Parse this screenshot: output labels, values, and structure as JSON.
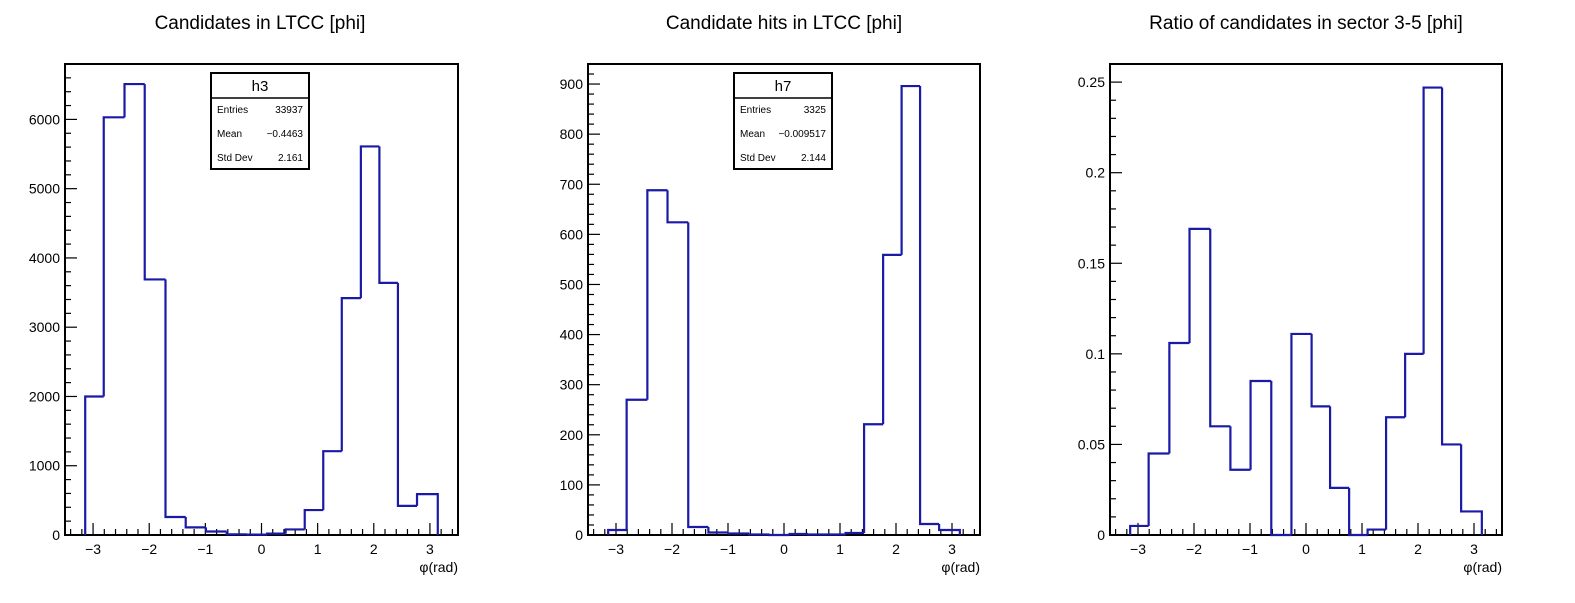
{
  "chart_data": [
    {
      "type": "bar",
      "title": "Candidates in LTCC [phi]",
      "xlabel": "φ(rad)",
      "ylabel": "",
      "xlim": [
        -3.5,
        3.5
      ],
      "ylim": [
        0,
        6800
      ],
      "xticks": [
        "−3",
        "−2",
        "−1",
        "0",
        "1",
        "2",
        "3"
      ],
      "xtick_values": [
        -3,
        -2,
        -1,
        0,
        1,
        2,
        3
      ],
      "yticks": [
        "0",
        "1000",
        "2000",
        "3000",
        "4000",
        "5000",
        "6000"
      ],
      "ytick_values": [
        0,
        1000,
        2000,
        3000,
        4000,
        5000,
        6000
      ],
      "bin_edges": [
        -3.14,
        -2.81,
        -2.44,
        -2.08,
        -1.71,
        -1.35,
        -0.99,
        -0.62,
        -0.26,
        0.1,
        0.43,
        0.77,
        1.1,
        1.43,
        1.77,
        2.1,
        2.43,
        2.77,
        3.14
      ],
      "values": [
        2000,
        6030,
        6510,
        3690,
        260,
        110,
        50,
        10,
        5,
        20,
        80,
        360,
        1210,
        3420,
        5610,
        3640,
        420,
        590
      ],
      "stats": {
        "name": "h3",
        "rows": [
          [
            "Entries",
            "33937"
          ],
          [
            "Mean",
            "−0.4463"
          ],
          [
            "Std Dev",
            "2.161"
          ]
        ]
      },
      "color": "#1a1aa6"
    },
    {
      "type": "bar",
      "title": "Candidate hits in LTCC [phi]",
      "xlabel": "φ(rad)",
      "ylabel": "",
      "xlim": [
        -3.5,
        3.5
      ],
      "ylim": [
        0,
        940
      ],
      "xticks": [
        "−3",
        "−2",
        "−1",
        "0",
        "1",
        "2",
        "3"
      ],
      "xtick_values": [
        -3,
        -2,
        -1,
        0,
        1,
        2,
        3
      ],
      "yticks": [
        "0",
        "100",
        "200",
        "300",
        "400",
        "500",
        "600",
        "700",
        "800",
        "900"
      ],
      "ytick_values": [
        0,
        100,
        200,
        300,
        400,
        500,
        600,
        700,
        800,
        900
      ],
      "bin_edges": [
        -3.14,
        -2.81,
        -2.44,
        -2.08,
        -1.71,
        -1.35,
        -0.99,
        -0.62,
        -0.26,
        0.1,
        0.43,
        0.77,
        1.1,
        1.43,
        1.77,
        2.1,
        2.43,
        2.77,
        3.14
      ],
      "values": [
        10,
        270,
        688,
        624,
        16,
        5,
        3,
        1,
        0,
        2,
        1,
        1,
        4,
        221,
        559,
        896,
        22,
        10
      ],
      "stats": {
        "name": "h7",
        "rows": [
          [
            "Entries",
            "3325"
          ],
          [
            "Mean",
            "−0.009517"
          ],
          [
            "Std Dev",
            "2.144"
          ]
        ]
      },
      "color": "#1a1aa6"
    },
    {
      "type": "bar",
      "title": "Ratio of candidates in sector 3-5 [phi]",
      "xlabel": "φ(rad)",
      "ylabel": "",
      "xlim": [
        -3.5,
        3.5
      ],
      "ylim": [
        0,
        0.26
      ],
      "xticks": [
        "−3",
        "−2",
        "−1",
        "0",
        "1",
        "2",
        "3"
      ],
      "xtick_values": [
        -3,
        -2,
        -1,
        0,
        1,
        2,
        3
      ],
      "yticks": [
        "0",
        "0.05",
        "0.1",
        "0.15",
        "0.2",
        "0.25"
      ],
      "ytick_values": [
        0,
        0.05,
        0.1,
        0.15,
        0.2,
        0.25
      ],
      "bin_edges": [
        -3.14,
        -2.81,
        -2.44,
        -2.08,
        -1.71,
        -1.35,
        -0.99,
        -0.62,
        -0.26,
        0.1,
        0.43,
        0.77,
        1.1,
        1.43,
        1.77,
        2.1,
        2.43,
        2.77,
        3.14
      ],
      "values": [
        0.005,
        0.045,
        0.106,
        0.169,
        0.06,
        0.036,
        0.085,
        0.0,
        0.111,
        0.071,
        0.026,
        0.0,
        0.003,
        0.065,
        0.1,
        0.247,
        0.05,
        0.013
      ],
      "stats": null,
      "color": "#1a1aa6"
    }
  ]
}
